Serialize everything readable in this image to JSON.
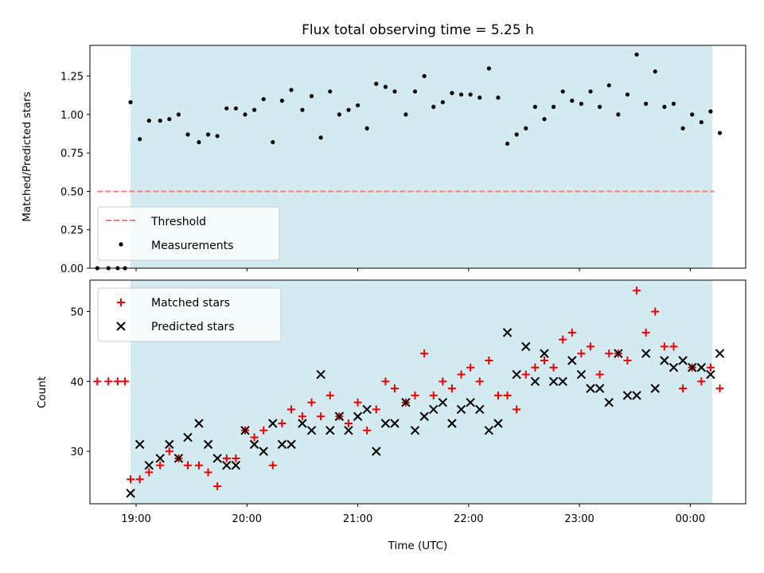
{
  "chart_data": [
    {
      "type": "scatter",
      "title": "Flux total observing time = 5.25 h",
      "xlabel": "",
      "ylabel": "Matched/Predicted stars",
      "ylim": [
        0,
        1.45
      ],
      "xlim": [
        "18:35",
        "00:30"
      ],
      "yticks": [
        "0.00",
        "0.25",
        "0.50",
        "0.75",
        "1.00",
        "1.25"
      ],
      "observing_window": [
        "18:57",
        "00:12"
      ],
      "shade_color": "#d3eaf0",
      "threshold": {
        "name": "Threshold",
        "value": 0.5,
        "color": "#f08080"
      },
      "legend_position": "lower left",
      "series": [
        {
          "name": "Measurements",
          "color": "#000000",
          "points": [
            [
              "18:39",
              0.0
            ],
            [
              "18:45",
              0.0
            ],
            [
              "18:50",
              0.0
            ],
            [
              "18:54",
              0.0
            ],
            [
              "18:57",
              1.08
            ],
            [
              "19:02",
              0.84
            ],
            [
              "19:07",
              0.96
            ],
            [
              "19:13",
              0.96
            ],
            [
              "19:18",
              0.97
            ],
            [
              "19:23",
              1.0
            ],
            [
              "19:28",
              0.87
            ],
            [
              "19:34",
              0.82
            ],
            [
              "19:39",
              0.87
            ],
            [
              "19:44",
              0.86
            ],
            [
              "19:49",
              1.04
            ],
            [
              "19:54",
              1.04
            ],
            [
              "19:59",
              1.0
            ],
            [
              "20:04",
              1.03
            ],
            [
              "20:09",
              1.1
            ],
            [
              "20:14",
              0.82
            ],
            [
              "20:19",
              1.09
            ],
            [
              "20:24",
              1.16
            ],
            [
              "20:30",
              1.03
            ],
            [
              "20:35",
              1.12
            ],
            [
              "20:40",
              0.85
            ],
            [
              "20:45",
              1.15
            ],
            [
              "20:50",
              1.0
            ],
            [
              "20:55",
              1.03
            ],
            [
              "21:00",
              1.06
            ],
            [
              "21:05",
              0.91
            ],
            [
              "21:10",
              1.2
            ],
            [
              "21:15",
              1.18
            ],
            [
              "21:20",
              1.15
            ],
            [
              "21:26",
              1.0
            ],
            [
              "21:31",
              1.15
            ],
            [
              "21:36",
              1.25
            ],
            [
              "21:41",
              1.05
            ],
            [
              "21:46",
              1.08
            ],
            [
              "21:51",
              1.14
            ],
            [
              "21:56",
              1.13
            ],
            [
              "22:01",
              1.13
            ],
            [
              "22:06",
              1.11
            ],
            [
              "22:11",
              1.3
            ],
            [
              "22:16",
              1.11
            ],
            [
              "22:21",
              0.81
            ],
            [
              "22:26",
              0.87
            ],
            [
              "22:31",
              0.91
            ],
            [
              "22:36",
              1.05
            ],
            [
              "22:41",
              0.97
            ],
            [
              "22:46",
              1.05
            ],
            [
              "22:51",
              1.15
            ],
            [
              "22:56",
              1.09
            ],
            [
              "23:01",
              1.07
            ],
            [
              "23:06",
              1.15
            ],
            [
              "23:11",
              1.05
            ],
            [
              "23:16",
              1.19
            ],
            [
              "23:21",
              1.0
            ],
            [
              "23:26",
              1.13
            ],
            [
              "23:31",
              1.39
            ],
            [
              "23:36",
              1.07
            ],
            [
              "23:41",
              1.28
            ],
            [
              "23:46",
              1.05
            ],
            [
              "23:51",
              1.07
            ],
            [
              "23:56",
              0.91
            ],
            [
              "00:01",
              1.0
            ],
            [
              "00:06",
              0.95
            ],
            [
              "00:11",
              1.02
            ],
            [
              "00:16",
              0.88
            ]
          ]
        }
      ]
    },
    {
      "type": "scatter",
      "title": "",
      "xlabel": "Time (UTC)",
      "ylabel": "Count",
      "ylim": [
        22.5,
        54.5
      ],
      "xlim": [
        "18:35",
        "00:30"
      ],
      "yticks": [
        "30",
        "40",
        "50"
      ],
      "xticks": [
        "19:00",
        "20:00",
        "21:00",
        "22:00",
        "23:00",
        "00:00"
      ],
      "observing_window": [
        "18:57",
        "00:12"
      ],
      "shade_color": "#d3eaf0",
      "legend_position": "upper left",
      "series": [
        {
          "name": "Matched stars",
          "marker": "plus",
          "color": "#ee0000",
          "points": [
            [
              "18:39",
              40
            ],
            [
              "18:45",
              40
            ],
            [
              "18:50",
              40
            ],
            [
              "18:54",
              40
            ],
            [
              "18:57",
              26
            ],
            [
              "19:02",
              26
            ],
            [
              "19:07",
              27
            ],
            [
              "19:13",
              28
            ],
            [
              "19:18",
              30
            ],
            [
              "19:23",
              29
            ],
            [
              "19:28",
              28
            ],
            [
              "19:34",
              28
            ],
            [
              "19:39",
              27
            ],
            [
              "19:44",
              25
            ],
            [
              "19:49",
              29
            ],
            [
              "19:54",
              29
            ],
            [
              "19:59",
              33
            ],
            [
              "20:04",
              32
            ],
            [
              "20:09",
              33
            ],
            [
              "20:14",
              28
            ],
            [
              "20:19",
              34
            ],
            [
              "20:24",
              36
            ],
            [
              "20:30",
              35
            ],
            [
              "20:35",
              37
            ],
            [
              "20:40",
              35
            ],
            [
              "20:45",
              38
            ],
            [
              "20:50",
              35
            ],
            [
              "20:55",
              34
            ],
            [
              "21:00",
              37
            ],
            [
              "21:05",
              33
            ],
            [
              "21:10",
              36
            ],
            [
              "21:15",
              40
            ],
            [
              "21:20",
              39
            ],
            [
              "21:26",
              37
            ],
            [
              "21:31",
              38
            ],
            [
              "21:36",
              44
            ],
            [
              "21:41",
              38
            ],
            [
              "21:46",
              40
            ],
            [
              "21:51",
              39
            ],
            [
              "21:56",
              41
            ],
            [
              "22:01",
              42
            ],
            [
              "22:06",
              40
            ],
            [
              "22:11",
              43
            ],
            [
              "22:16",
              38
            ],
            [
              "22:21",
              38
            ],
            [
              "22:26",
              36
            ],
            [
              "22:31",
              41
            ],
            [
              "22:36",
              42
            ],
            [
              "22:41",
              43
            ],
            [
              "22:46",
              42
            ],
            [
              "22:51",
              46
            ],
            [
              "22:56",
              47
            ],
            [
              "23:01",
              44
            ],
            [
              "23:06",
              45
            ],
            [
              "23:11",
              41
            ],
            [
              "23:16",
              44
            ],
            [
              "23:21",
              44
            ],
            [
              "23:26",
              43
            ],
            [
              "23:31",
              53
            ],
            [
              "23:36",
              47
            ],
            [
              "23:41",
              50
            ],
            [
              "23:46",
              45
            ],
            [
              "23:51",
              45
            ],
            [
              "23:56",
              39
            ],
            [
              "00:01",
              42
            ],
            [
              "00:06",
              40
            ],
            [
              "00:11",
              42
            ],
            [
              "00:16",
              39
            ]
          ]
        },
        {
          "name": "Predicted stars",
          "marker": "x",
          "color": "#000000",
          "points": [
            [
              "18:57",
              24
            ],
            [
              "19:02",
              31
            ],
            [
              "19:07",
              28
            ],
            [
              "19:13",
              29
            ],
            [
              "19:18",
              31
            ],
            [
              "19:23",
              29
            ],
            [
              "19:28",
              32
            ],
            [
              "19:34",
              34
            ],
            [
              "19:39",
              31
            ],
            [
              "19:44",
              29
            ],
            [
              "19:49",
              28
            ],
            [
              "19:54",
              28
            ],
            [
              "19:59",
              33
            ],
            [
              "20:04",
              31
            ],
            [
              "20:09",
              30
            ],
            [
              "20:14",
              34
            ],
            [
              "20:19",
              31
            ],
            [
              "20:24",
              31
            ],
            [
              "20:30",
              34
            ],
            [
              "20:35",
              33
            ],
            [
              "20:40",
              41
            ],
            [
              "20:45",
              33
            ],
            [
              "20:50",
              35
            ],
            [
              "20:55",
              33
            ],
            [
              "21:00",
              35
            ],
            [
              "21:05",
              36
            ],
            [
              "21:10",
              30
            ],
            [
              "21:15",
              34
            ],
            [
              "21:20",
              34
            ],
            [
              "21:26",
              37
            ],
            [
              "21:31",
              33
            ],
            [
              "21:36",
              35
            ],
            [
              "21:41",
              36
            ],
            [
              "21:46",
              37
            ],
            [
              "21:51",
              34
            ],
            [
              "21:56",
              36
            ],
            [
              "22:01",
              37
            ],
            [
              "22:06",
              36
            ],
            [
              "22:11",
              33
            ],
            [
              "22:16",
              34
            ],
            [
              "22:21",
              47
            ],
            [
              "22:26",
              41
            ],
            [
              "22:31",
              45
            ],
            [
              "22:36",
              40
            ],
            [
              "22:41",
              44
            ],
            [
              "22:46",
              40
            ],
            [
              "22:51",
              40
            ],
            [
              "22:56",
              43
            ],
            [
              "23:01",
              41
            ],
            [
              "23:06",
              39
            ],
            [
              "23:11",
              39
            ],
            [
              "23:16",
              37
            ],
            [
              "23:21",
              44
            ],
            [
              "23:26",
              38
            ],
            [
              "23:31",
              38
            ],
            [
              "23:36",
              44
            ],
            [
              "23:41",
              39
            ],
            [
              "23:46",
              43
            ],
            [
              "23:51",
              42
            ],
            [
              "23:56",
              43
            ],
            [
              "00:01",
              42
            ],
            [
              "00:06",
              42
            ],
            [
              "00:11",
              41
            ],
            [
              "00:16",
              44
            ]
          ]
        }
      ]
    }
  ]
}
